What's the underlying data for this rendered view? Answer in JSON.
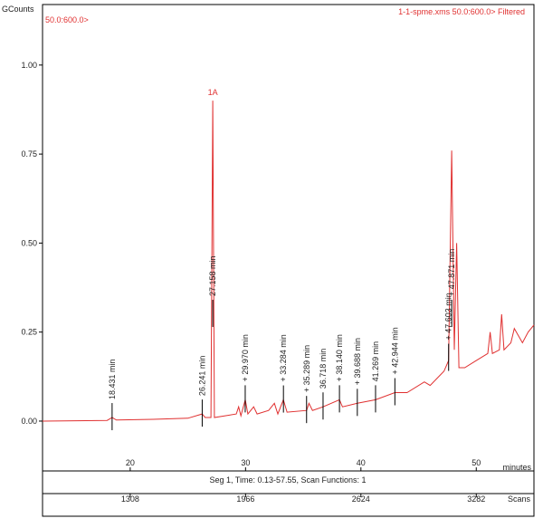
{
  "chart_data": {
    "type": "line",
    "y_unit_label": "GCounts",
    "range_label": "50.0:600.0>",
    "title": "1-1-spme.xms 50.0:600.0> Filtered",
    "xlabel": "minutes",
    "segment_label": "Seg 1, Time: 0.13-57.55, Scan Functions: 1",
    "x2label": "Scans",
    "peak_name": "1A",
    "xlim": [
      12.4,
      55
    ],
    "xticks": [
      20,
      30,
      40,
      50
    ],
    "x2lim": [
      808,
      3611
    ],
    "x2ticks": [
      1308,
      1966,
      2624,
      3282
    ],
    "ylim": [
      -0.14,
      1.17
    ],
    "yticks": [
      {
        "value": 0,
        "label": "0.00"
      },
      {
        "value": 0.25,
        "label": "0.25"
      },
      {
        "value": 0.5,
        "label": "0.50"
      },
      {
        "value": 0.75,
        "label": "0.75"
      },
      {
        "value": 1,
        "label": "1.00"
      }
    ],
    "series": [
      {
        "color": "#e03030",
        "x": [
          12.4,
          18.0,
          18.43,
          18.8,
          22,
          25,
          26.24,
          26.5,
          27.0,
          27.158,
          27.3,
          29.2,
          29.4,
          29.6,
          29.97,
          30.2,
          30.7,
          31,
          32,
          32.5,
          32.8,
          33.28,
          33.6,
          35.29,
          35.5,
          35.8,
          36.72,
          38.14,
          38.4,
          39.69,
          41.27,
          42.94,
          44,
          45.5,
          46,
          47.2,
          47.6,
          47.87,
          48.1,
          48.3,
          48.5,
          49,
          50,
          51,
          51.2,
          51.4,
          52,
          52.2,
          52.4,
          53,
          53.3,
          54,
          54.5,
          55
        ],
        "values": [
          0.0,
          0.002,
          0.01,
          0.003,
          0.005,
          0.008,
          0.02,
          0.01,
          0.01,
          0.9,
          0.01,
          0.02,
          0.04,
          0.015,
          0.06,
          0.02,
          0.04,
          0.02,
          0.03,
          0.05,
          0.02,
          0.06,
          0.025,
          0.03,
          0.05,
          0.03,
          0.04,
          0.06,
          0.04,
          0.05,
          0.06,
          0.08,
          0.08,
          0.11,
          0.1,
          0.14,
          0.17,
          0.76,
          0.2,
          0.5,
          0.15,
          0.15,
          0.17,
          0.19,
          0.25,
          0.19,
          0.2,
          0.3,
          0.2,
          0.22,
          0.26,
          0.22,
          0.25,
          0.27
        ]
      }
    ],
    "annotations": [
      {
        "value": 18.431,
        "label": "18.431 min"
      },
      {
        "value": 26.241,
        "label": "26.241 min"
      },
      {
        "value": 27.158,
        "label": "27.158 min"
      },
      {
        "value": 29.97,
        "label": "+ 29.970 min"
      },
      {
        "value": 33.284,
        "label": "+ 33.284 min"
      },
      {
        "value": 35.289,
        "label": "+ 35.289 min"
      },
      {
        "value": 36.718,
        "label": "36.718 min"
      },
      {
        "value": 38.14,
        "label": "+ 38.140 min"
      },
      {
        "value": 39.688,
        "label": "+ 39.688 min"
      },
      {
        "value": 41.269,
        "label": "41.269 min"
      },
      {
        "value": 42.944,
        "label": "+ 42.944 min"
      },
      {
        "value": 47.603,
        "label": "+ 47.603 min"
      },
      {
        "value": 47.871,
        "label": "+ 47.871 min"
      }
    ]
  }
}
